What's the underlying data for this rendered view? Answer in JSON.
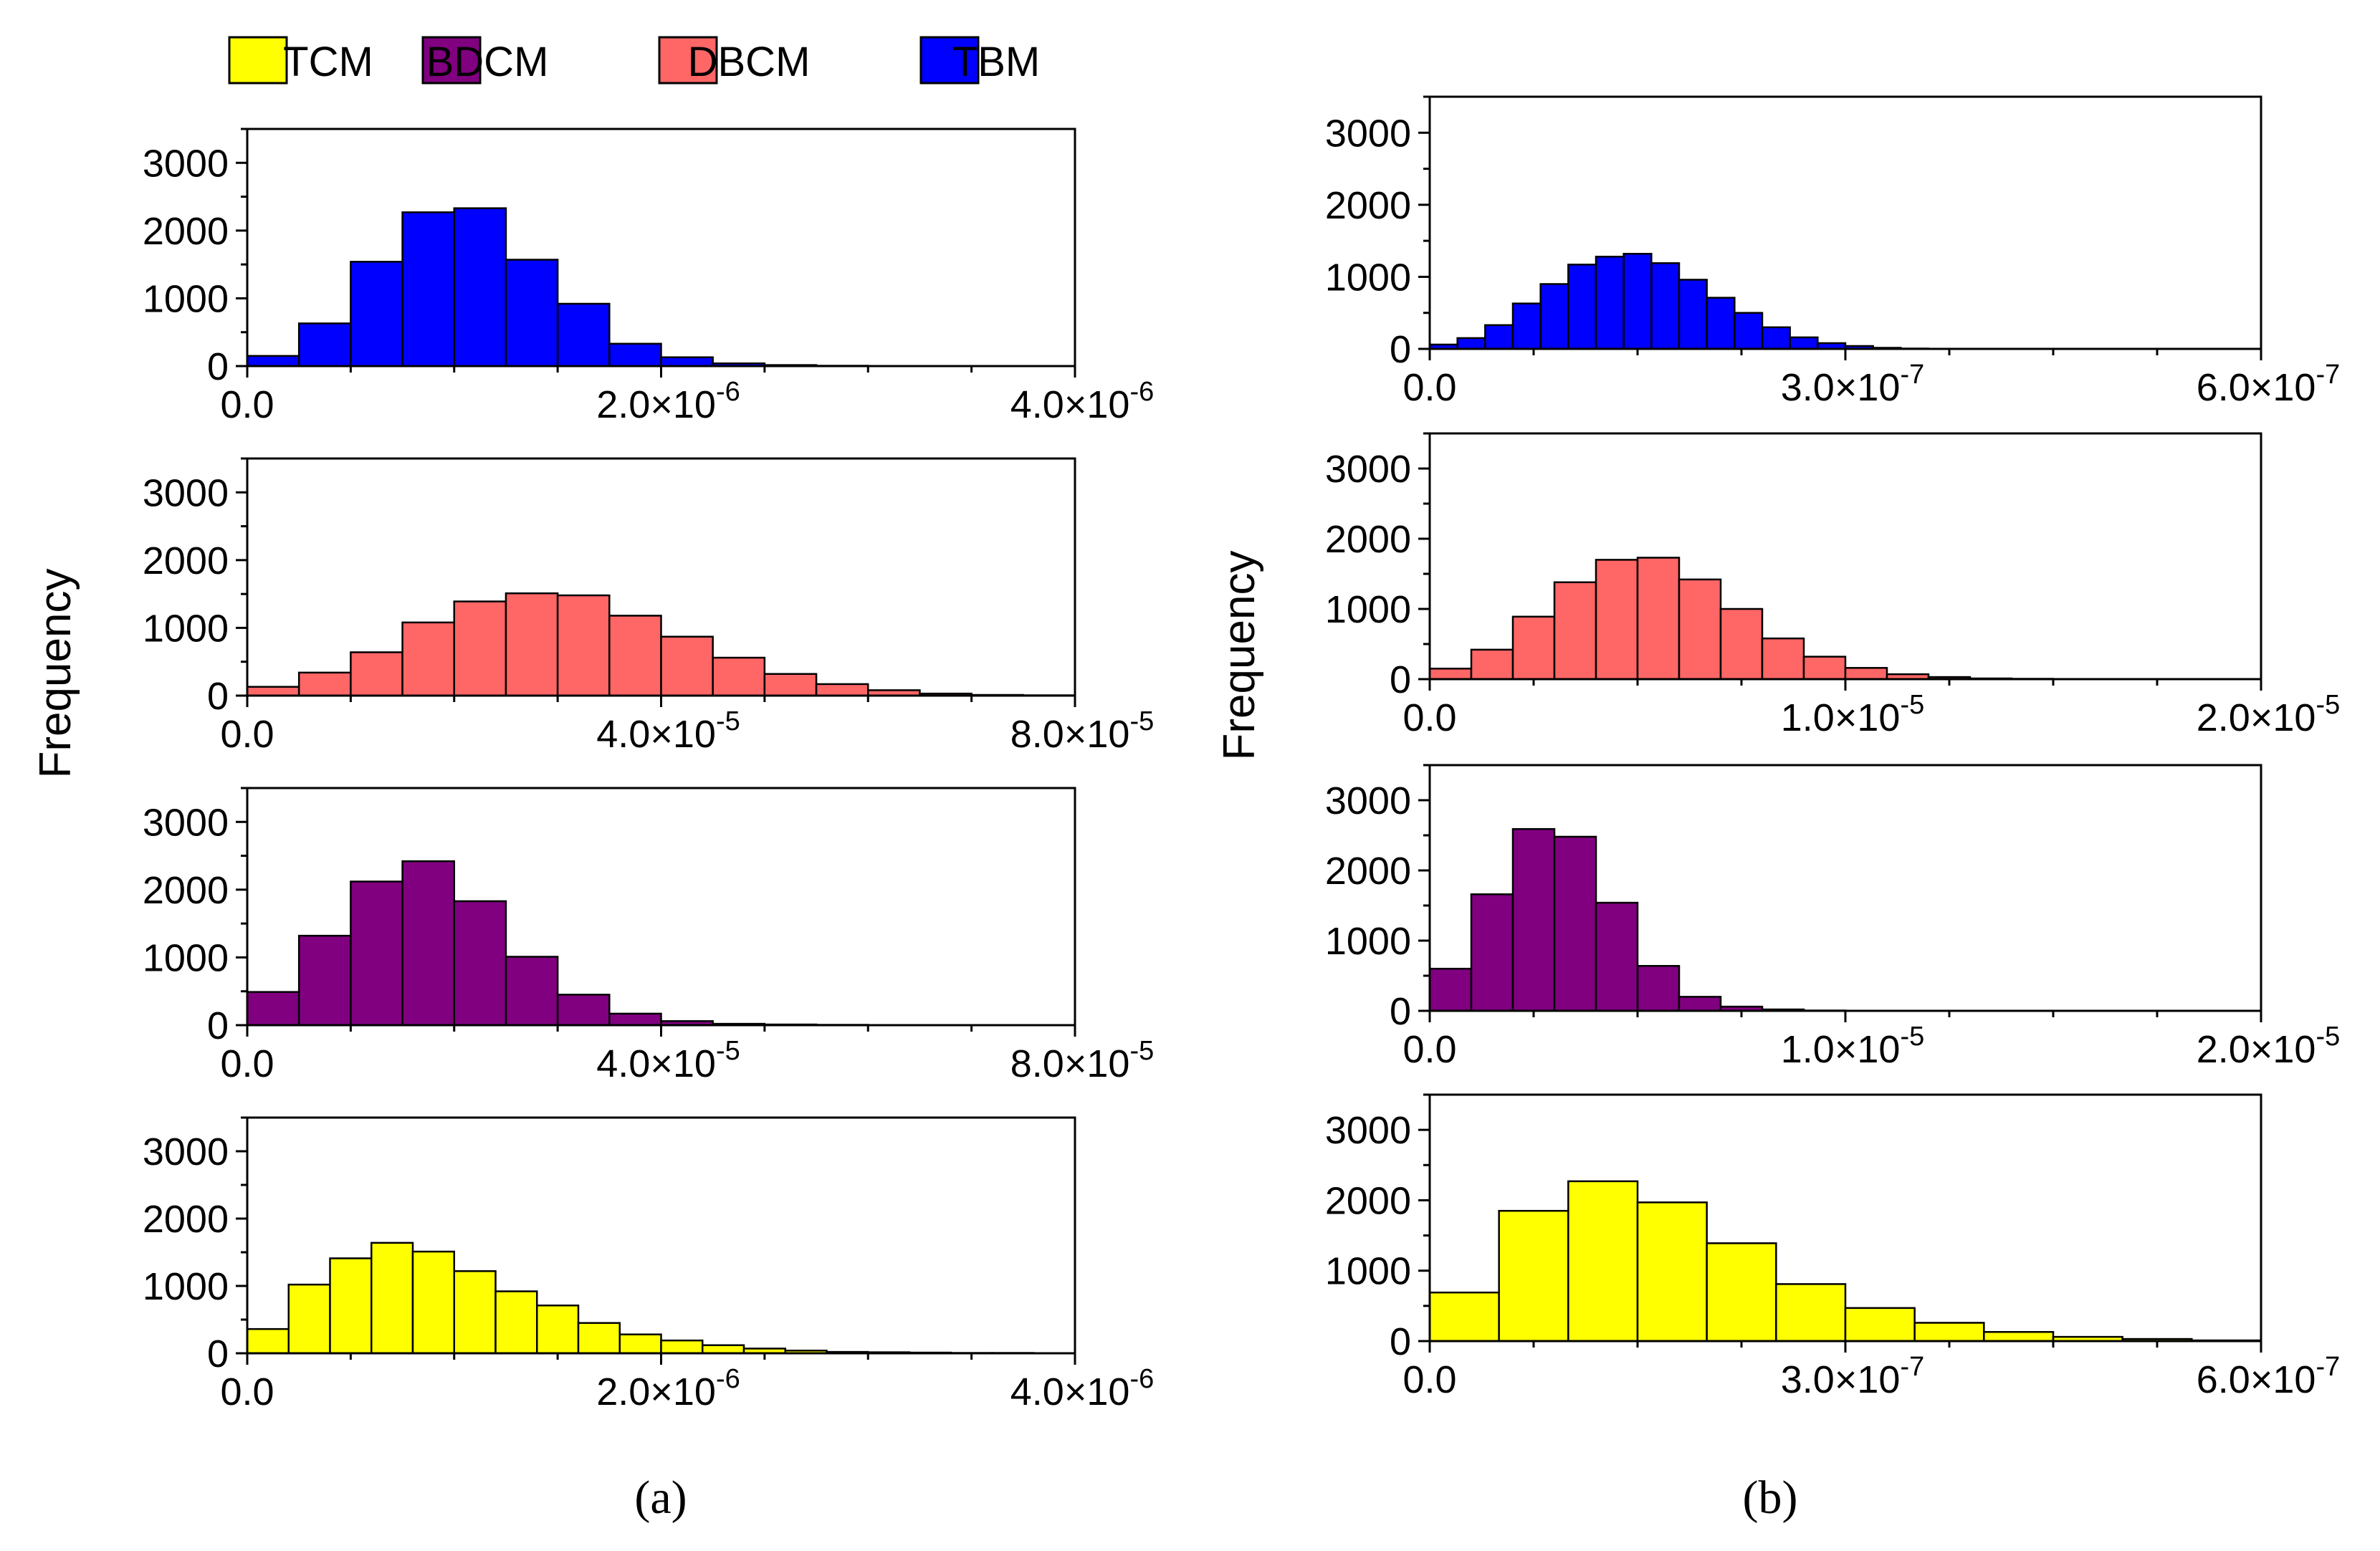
{
  "figure": {
    "ylabel": "Frequency",
    "panel_labels": [
      "(a)",
      "(b)"
    ]
  },
  "legend": {
    "entries": [
      {
        "label": "TCM",
        "color": "#ffff00"
      },
      {
        "label": "BDCM",
        "color": "#800080"
      },
      {
        "label": "DBCM",
        "color": "#ff6666"
      },
      {
        "label": "TBM",
        "color": "#0000ff"
      }
    ]
  },
  "chart_data": [
    {
      "type": "bar",
      "panel": "a",
      "row": 0,
      "series": "TBM",
      "color": "#0000ff",
      "bin_start": 0,
      "bin_width": 2.5e-07,
      "values": [
        150,
        630,
        1540,
        2270,
        2330,
        1570,
        920,
        330,
        130,
        40,
        15,
        5,
        0,
        0,
        0,
        0
      ],
      "xlim": [
        0,
        4e-06
      ],
      "ylim": [
        0,
        3500
      ],
      "yticks": [
        0,
        1000,
        2000,
        3000
      ],
      "ytick_labels": [
        "0",
        "1000",
        "2000",
        "3000"
      ],
      "xticks": [
        0,
        2e-06,
        4e-06
      ],
      "xtick_labels": [
        {
          "m": "0.0",
          "e": ""
        },
        {
          "m": "2.0×10",
          "e": "-6"
        },
        {
          "m": "4.0×10",
          "e": "-6"
        }
      ]
    },
    {
      "type": "bar",
      "panel": "a",
      "row": 1,
      "series": "DBCM",
      "color": "#ff6666",
      "bin_start": 0,
      "bin_width": 5e-06,
      "values": [
        130,
        340,
        640,
        1080,
        1390,
        1510,
        1480,
        1180,
        870,
        560,
        320,
        170,
        80,
        30,
        10,
        5
      ],
      "xlim": [
        0,
        8e-05
      ],
      "ylim": [
        0,
        3500
      ],
      "yticks": [
        0,
        1000,
        2000,
        3000
      ],
      "ytick_labels": [
        "0",
        "1000",
        "2000",
        "3000"
      ],
      "xticks": [
        0,
        4e-05,
        8e-05
      ],
      "xtick_labels": [
        {
          "m": "0.0",
          "e": ""
        },
        {
          "m": "4.0×10",
          "e": "-5"
        },
        {
          "m": "8.0×10",
          "e": "-5"
        }
      ]
    },
    {
      "type": "bar",
      "panel": "a",
      "row": 2,
      "series": "BDCM",
      "color": "#800080",
      "bin_start": 0,
      "bin_width": 5e-06,
      "values": [
        490,
        1320,
        2120,
        2420,
        1830,
        1010,
        450,
        170,
        60,
        20,
        10,
        5,
        0,
        0,
        0,
        0
      ],
      "xlim": [
        0,
        8e-05
      ],
      "ylim": [
        0,
        3500
      ],
      "yticks": [
        0,
        1000,
        2000,
        3000
      ],
      "ytick_labels": [
        "0",
        "1000",
        "2000",
        "3000"
      ],
      "xticks": [
        0,
        4e-05,
        8e-05
      ],
      "xtick_labels": [
        {
          "m": "0.0",
          "e": ""
        },
        {
          "m": "4.0×10",
          "e": "-5"
        },
        {
          "m": "8.0×10",
          "e": "-5"
        }
      ]
    },
    {
      "type": "bar",
      "panel": "a",
      "row": 3,
      "series": "TCM",
      "color": "#ffff00",
      "bin_start": 0,
      "bin_width": 2e-07,
      "values": [
        360,
        1020,
        1410,
        1640,
        1510,
        1220,
        920,
        710,
        450,
        280,
        190,
        120,
        70,
        40,
        20,
        15,
        10,
        5,
        5,
        0
      ],
      "xlim": [
        0,
        4e-06
      ],
      "ylim": [
        0,
        3500
      ],
      "yticks": [
        0,
        1000,
        2000,
        3000
      ],
      "ytick_labels": [
        "0",
        "1000",
        "2000",
        "3000"
      ],
      "xticks": [
        0,
        2e-06,
        4e-06
      ],
      "xtick_labels": [
        {
          "m": "0.0",
          "e": ""
        },
        {
          "m": "2.0×10",
          "e": "-6"
        },
        {
          "m": "4.0×10",
          "e": "-6"
        }
      ]
    },
    {
      "type": "bar",
      "panel": "b",
      "row": 0,
      "series": "TBM",
      "color": "#0000ff",
      "bin_start": 0,
      "bin_width": 2e-08,
      "values": [
        60,
        150,
        330,
        630,
        900,
        1170,
        1280,
        1320,
        1190,
        960,
        710,
        500,
        300,
        160,
        80,
        40,
        15,
        5,
        0,
        0,
        0,
        0,
        0,
        0,
        0,
        0,
        0,
        0,
        0,
        0
      ],
      "xlim": [
        0,
        6e-07
      ],
      "ylim": [
        0,
        3500
      ],
      "yticks": [
        0,
        1000,
        2000,
        3000
      ],
      "ytick_labels": [
        "0",
        "1000",
        "2000",
        "3000"
      ],
      "xticks": [
        0,
        3e-07,
        6e-07
      ],
      "xtick_labels": [
        {
          "m": "0.0",
          "e": ""
        },
        {
          "m": "3.0×10",
          "e": "-7"
        },
        {
          "m": "6.0×10",
          "e": "-7"
        }
      ]
    },
    {
      "type": "bar",
      "panel": "b",
      "row": 1,
      "series": "DBCM",
      "color": "#ff6666",
      "bin_start": 0,
      "bin_width": 1e-06,
      "values": [
        150,
        420,
        890,
        1380,
        1700,
        1730,
        1420,
        1000,
        580,
        320,
        160,
        70,
        30,
        10,
        5,
        0,
        0,
        0,
        0,
        0
      ],
      "xlim": [
        0,
        2e-05
      ],
      "ylim": [
        0,
        3500
      ],
      "yticks": [
        0,
        1000,
        2000,
        3000
      ],
      "ytick_labels": [
        "0",
        "1000",
        "2000",
        "3000"
      ],
      "xticks": [
        0,
        1e-05,
        2e-05
      ],
      "xtick_labels": [
        {
          "m": "0.0",
          "e": ""
        },
        {
          "m": "1.0×10",
          "e": "-5"
        },
        {
          "m": "2.0×10",
          "e": "-5"
        }
      ]
    },
    {
      "type": "bar",
      "panel": "b",
      "row": 2,
      "series": "BDCM",
      "color": "#800080",
      "bin_start": 0,
      "bin_width": 1e-06,
      "values": [
        600,
        1660,
        2590,
        2480,
        1540,
        640,
        200,
        60,
        20,
        5,
        0,
        0,
        0,
        0,
        0,
        0,
        0,
        0,
        0,
        0
      ],
      "xlim": [
        0,
        2e-05
      ],
      "ylim": [
        0,
        3500
      ],
      "yticks": [
        0,
        1000,
        2000,
        3000
      ],
      "ytick_labels": [
        "0",
        "1000",
        "2000",
        "3000"
      ],
      "xticks": [
        0,
        1e-05,
        2e-05
      ],
      "xtick_labels": [
        {
          "m": "0.0",
          "e": ""
        },
        {
          "m": "1.0×10",
          "e": "-5"
        },
        {
          "m": "2.0×10",
          "e": "-5"
        }
      ]
    },
    {
      "type": "bar",
      "panel": "b",
      "row": 3,
      "series": "TCM",
      "color": "#ffff00",
      "bin_start": 0,
      "bin_width": 5e-08,
      "values": [
        690,
        1850,
        2270,
        1970,
        1390,
        810,
        470,
        260,
        130,
        60,
        30,
        10
      ],
      "xlim": [
        0,
        6e-07
      ],
      "ylim": [
        0,
        3500
      ],
      "yticks": [
        0,
        1000,
        2000,
        3000
      ],
      "ytick_labels": [
        "0",
        "1000",
        "2000",
        "3000"
      ],
      "xticks": [
        0,
        3e-07,
        6e-07
      ],
      "xtick_labels": [
        {
          "m": "0.0",
          "e": ""
        },
        {
          "m": "3.0×10",
          "e": "-7"
        },
        {
          "m": "6.0×10",
          "e": "-7"
        }
      ]
    }
  ]
}
